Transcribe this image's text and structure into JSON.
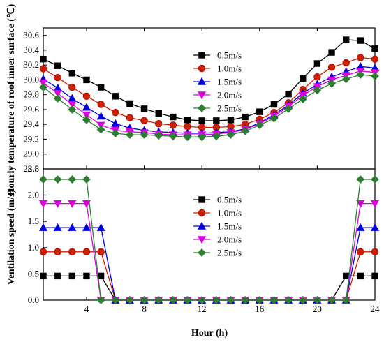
{
  "chart_data": [
    {
      "type": "line",
      "ylabel": "Hourly temperature of roof inner surface (℃)",
      "xlabel": "",
      "xlim": [
        1,
        24
      ],
      "ylim": [
        28.8,
        30.7
      ],
      "yticks": [
        "28.8",
        "29.0",
        "29.2",
        "29.4",
        "29.6",
        "29.8",
        "30.0",
        "30.2",
        "30.4",
        "30.6"
      ],
      "ytick_values": [
        28.8,
        29.0,
        29.2,
        29.4,
        29.6,
        29.8,
        30.0,
        30.2,
        30.4,
        30.6
      ],
      "x": [
        1,
        2,
        3,
        4,
        5,
        6,
        7,
        8,
        9,
        10,
        11,
        12,
        13,
        14,
        15,
        16,
        17,
        18,
        19,
        20,
        21,
        22,
        23,
        24
      ],
      "legend_position": "top-right",
      "series": [
        {
          "name": "0.5m/s",
          "color": "#000000",
          "marker": "square",
          "values": [
            30.28,
            30.19,
            30.09,
            30.0,
            29.9,
            29.78,
            29.68,
            29.61,
            29.55,
            29.5,
            29.46,
            29.45,
            29.45,
            29.46,
            29.5,
            29.57,
            29.67,
            29.81,
            30.02,
            30.22,
            30.37,
            30.54,
            30.53,
            30.42
          ]
        },
        {
          "name": "1.0m/s",
          "color": "#cc2200",
          "marker": "circle",
          "values": [
            30.15,
            30.03,
            29.9,
            29.78,
            29.67,
            29.56,
            29.49,
            29.45,
            29.41,
            29.39,
            29.37,
            29.36,
            29.36,
            29.37,
            29.4,
            29.47,
            29.56,
            29.69,
            29.87,
            30.04,
            30.17,
            30.23,
            30.3,
            30.28
          ]
        },
        {
          "name": "1.5m/s",
          "color": "#0000dd",
          "marker": "triangle-up",
          "values": [
            30.01,
            29.89,
            29.75,
            29.63,
            29.51,
            29.41,
            29.35,
            29.32,
            29.3,
            29.29,
            29.28,
            29.28,
            29.29,
            29.3,
            29.34,
            29.42,
            29.53,
            29.66,
            29.82,
            29.94,
            30.04,
            30.11,
            30.18,
            30.16
          ]
        },
        {
          "name": "2.0m/s",
          "color": "#dd00dd",
          "marker": "triangle-down",
          "values": [
            29.96,
            29.82,
            29.67,
            29.53,
            29.39,
            29.32,
            29.3,
            29.29,
            29.27,
            29.26,
            29.26,
            29.26,
            29.27,
            29.29,
            29.33,
            29.41,
            29.51,
            29.64,
            29.79,
            29.91,
            30.0,
            30.06,
            30.12,
            30.1
          ]
        },
        {
          "name": "2.5m/s",
          "color": "#2e7d32",
          "marker": "diamond",
          "values": [
            29.9,
            29.75,
            29.6,
            29.46,
            29.33,
            29.28,
            29.26,
            29.26,
            29.25,
            29.24,
            29.23,
            29.23,
            29.24,
            29.26,
            29.31,
            29.39,
            29.48,
            29.61,
            29.74,
            29.86,
            29.95,
            30.01,
            30.07,
            30.05
          ]
        }
      ]
    },
    {
      "type": "line",
      "ylabel": "Ventilation speed (m/s)",
      "xlabel": "Hour (h)",
      "xlim": [
        1,
        24
      ],
      "ylim": [
        0,
        2.5
      ],
      "xticks": [
        "4",
        "8",
        "12",
        "16",
        "20",
        "24"
      ],
      "xtick_values": [
        4,
        8,
        12,
        16,
        20,
        24
      ],
      "yticks": [
        "0.0",
        "0.5",
        "1.0",
        "1.5",
        "2.0",
        "2.5"
      ],
      "ytick_values": [
        0,
        0.5,
        1.0,
        1.5,
        2.0,
        2.5
      ],
      "x": [
        1,
        2,
        3,
        4,
        5,
        6,
        7,
        8,
        9,
        10,
        11,
        12,
        13,
        14,
        15,
        16,
        17,
        18,
        19,
        20,
        21,
        22,
        23,
        24
      ],
      "legend_position": "center-right",
      "series": [
        {
          "name": "0.5m/s",
          "color": "#000000",
          "marker": "square",
          "values": [
            0.46,
            0.46,
            0.46,
            0.46,
            0.46,
            0,
            0,
            0,
            0,
            0,
            0,
            0,
            0,
            0,
            0,
            0,
            0,
            0,
            0,
            0,
            0,
            0.46,
            0.46,
            0.46
          ]
        },
        {
          "name": "1.0m/s",
          "color": "#cc2200",
          "marker": "circle",
          "values": [
            0.92,
            0.92,
            0.92,
            0.92,
            0.92,
            0,
            0,
            0,
            0,
            0,
            0,
            0,
            0,
            0,
            0,
            0,
            0,
            0,
            0,
            0,
            0,
            0,
            0.92,
            0.92
          ]
        },
        {
          "name": "1.5m/s",
          "color": "#0000dd",
          "marker": "triangle-up",
          "values": [
            1.38,
            1.38,
            1.38,
            1.38,
            1.38,
            0,
            0,
            0,
            0,
            0,
            0,
            0,
            0,
            0,
            0,
            0,
            0,
            0,
            0,
            0,
            0,
            0,
            1.38,
            1.38
          ]
        },
        {
          "name": "2.0m/s",
          "color": "#dd00dd",
          "marker": "triangle-down",
          "values": [
            1.84,
            1.84,
            1.84,
            1.84,
            0,
            0,
            0,
            0,
            0,
            0,
            0,
            0,
            0,
            0,
            0,
            0,
            0,
            0,
            0,
            0,
            0,
            0,
            1.84,
            1.84
          ]
        },
        {
          "name": "2.5m/s",
          "color": "#2e7d32",
          "marker": "diamond",
          "values": [
            2.3,
            2.3,
            2.3,
            2.3,
            0,
            0,
            0,
            0,
            0,
            0,
            0,
            0,
            0,
            0,
            0,
            0,
            0,
            0,
            0,
            0,
            0,
            0,
            2.3,
            2.3
          ]
        }
      ]
    }
  ]
}
